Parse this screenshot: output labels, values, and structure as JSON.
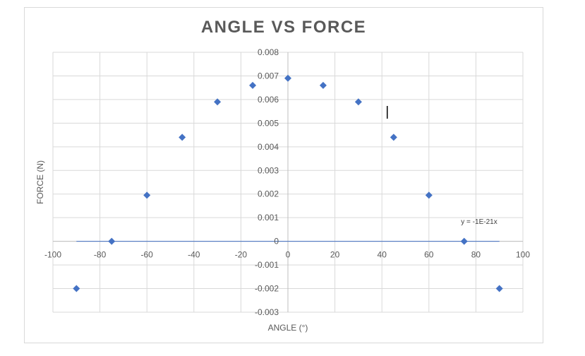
{
  "chart_data": {
    "type": "scatter",
    "title": "ANGLE VS FORCE",
    "xlabel": "ANGLE (°)",
    "ylabel": "FORCE (N)",
    "xlim": [
      -100,
      100
    ],
    "ylim": [
      -0.003,
      0.008
    ],
    "x_ticks": [
      -100,
      -80,
      -60,
      -40,
      -20,
      0,
      20,
      40,
      60,
      80,
      100
    ],
    "y_ticks": [
      -0.003,
      -0.002,
      -0.001,
      0,
      0.001,
      0.002,
      0.003,
      0.004,
      0.005,
      0.006,
      0.007,
      0.008
    ],
    "y_tick_labels": [
      "-0.003",
      "-0.002",
      "-0.001",
      "0",
      "0.001",
      "0.002",
      "0.003",
      "0.004",
      "0.005",
      "0.006",
      "0.007",
      "0.008"
    ],
    "grid": true,
    "series": [
      {
        "color": "#4472c4",
        "marker": "diamond",
        "points": [
          {
            "x": -90,
            "y": -0.002
          },
          {
            "x": -75,
            "y": 0.0
          },
          {
            "x": -60,
            "y": 0.00195
          },
          {
            "x": -45,
            "y": 0.0044
          },
          {
            "x": -30,
            "y": 0.0059
          },
          {
            "x": -15,
            "y": 0.0066
          },
          {
            "x": 0,
            "y": 0.0069
          },
          {
            "x": 15,
            "y": 0.0066
          },
          {
            "x": 30,
            "y": 0.0059
          },
          {
            "x": 45,
            "y": 0.0044
          },
          {
            "x": 60,
            "y": 0.00195
          },
          {
            "x": 75,
            "y": 0.0
          },
          {
            "x": 90,
            "y": -0.002
          }
        ]
      }
    ],
    "trendline": {
      "type": "linear",
      "x_range": [
        -90,
        90
      ],
      "label": "y = -1E-21x",
      "color": "#4472c4"
    }
  }
}
